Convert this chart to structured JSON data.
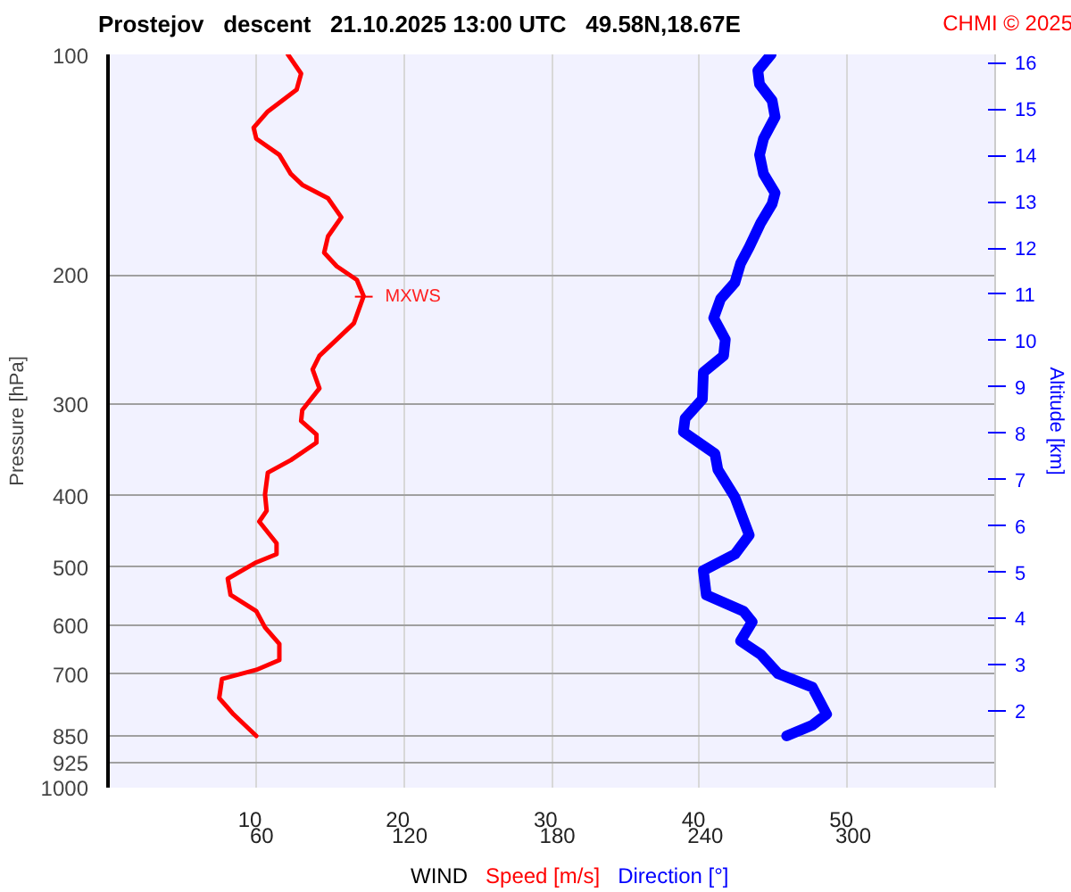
{
  "chart_data": {
    "type": "line",
    "title": "Prostejov   descent   21.10.2025 13:00 UTC   49.58N,18.67E",
    "xlabel": "WIND",
    "ylabel": "Pressure [hPa]",
    "y2label": "Altitude [km]",
    "annotations": [
      "CHMI © 2025",
      {
        "text": "MXWS",
        "x": 17.3,
        "y": 214
      }
    ],
    "series": [
      {
        "name": "Speed [m/s]",
        "color": "#ff0000",
        "x": [
          12.17,
          13.06,
          12.76,
          10.81,
          9.85,
          10.03,
          11.59,
          12.36,
          13.14,
          14.88,
          15.78,
          14.88,
          14.62,
          15.47,
          16.83,
          17.29,
          16.63,
          15.47,
          14.3,
          13.84,
          14.3,
          13.14,
          13.06,
          14.1,
          14.1,
          12.36,
          10.81,
          10.62,
          10.73,
          10.23,
          11.4,
          11.4,
          10.03,
          8.1,
          8.29,
          10.03,
          10.62,
          11.59,
          11.59,
          10.03,
          7.71,
          7.52,
          8.49,
          10.03
        ],
        "values": [
          100,
          106.2,
          111.7,
          119.6,
          125.9,
          130.3,
          137.1,
          145.5,
          150.6,
          157.1,
          166.8,
          177.1,
          186.4,
          194.5,
          203,
          213.6,
          232.6,
          244.8,
          257.7,
          268.9,
          285.4,
          305.6,
          316.2,
          329.9,
          338.5,
          357.6,
          371.9,
          398.1,
          419.1,
          433.7,
          464.2,
          480.4,
          492.9,
          518.8,
          546,
          574.5,
          604.6,
          636.6,
          669.9,
          690.8,
          710.9,
          754.8,
          794.3,
          850
        ]
      },
      {
        "name": "Direction [°]",
        "color": "#0000ff",
        "axis": "x2",
        "x": [
          269.1,
          263.7,
          264.4,
          269.5,
          270.7,
          266.0,
          264.4,
          266.0,
          270.7,
          269.5,
          264.9,
          260.2,
          256.7,
          254.4,
          248.6,
          245.8,
          250.5,
          249.8,
          241.6,
          241.2,
          234.2,
          233.5,
          246.3,
          247.5,
          254.4,
          260.2,
          254.4,
          241.6,
          242.8,
          257.9,
          261.4,
          256.7,
          264.9,
          271.9,
          285.8,
          291.6,
          285.8,
          275.4
        ],
        "values": [
          100,
          105.2,
          109.8,
          115.6,
          121.7,
          130.3,
          137.1,
          145.5,
          154.5,
          159.9,
          169.7,
          183.2,
          192.8,
          204.7,
          215.4,
          228.8,
          244.8,
          257.7,
          271.3,
          295.3,
          313.5,
          327.2,
          350.4,
          368.6,
          401.7,
          452.5,
          480.4,
          505.7,
          546,
          574.5,
          594.3,
          631,
          658.3,
          698.9,
          729.3,
          794.3,
          822,
          850
        ]
      }
    ],
    "xlim": [
      0,
      60
    ],
    "x2lim": [
      0,
      360
    ],
    "xticks": [
      10,
      20,
      30,
      40,
      50
    ],
    "x2ticks": [
      60,
      120,
      180,
      240,
      300
    ],
    "ylim": [
      1000,
      100
    ],
    "yticks": [
      100,
      200,
      300,
      400,
      500,
      600,
      700,
      850,
      925,
      1000
    ],
    "y2lim": [
      0.35,
      16.18
    ],
    "y2ticks": [
      2,
      3,
      4,
      5,
      6,
      7,
      8,
      9,
      10,
      11,
      12,
      13,
      14,
      15,
      16
    ],
    "log": "y",
    "grid": true
  }
}
